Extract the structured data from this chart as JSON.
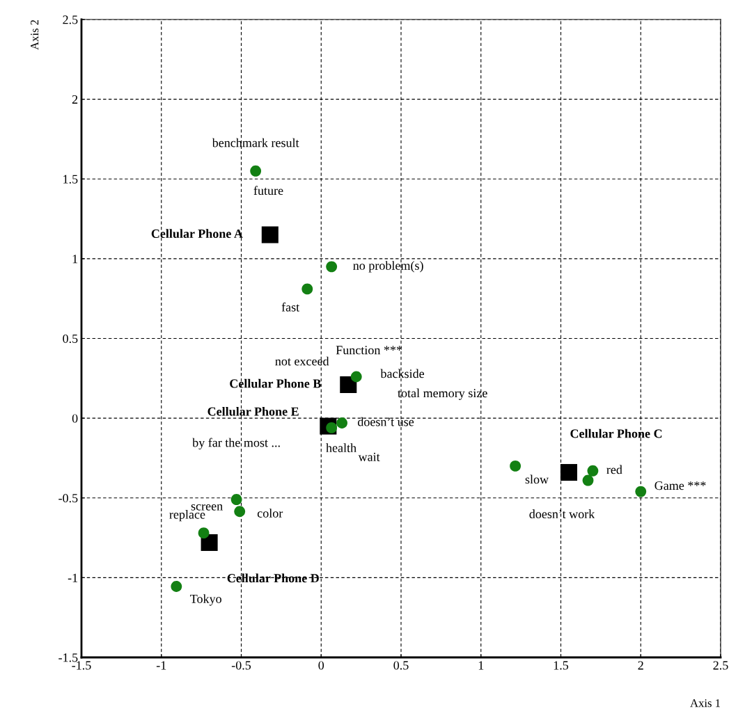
{
  "chart_data": {
    "type": "scatter",
    "xlabel": "Axis 1",
    "ylabel": "Axis 2",
    "xlim": [
      -1.5,
      2.5
    ],
    "ylim": [
      -1.5,
      2.5
    ],
    "xticks": [
      -1.5,
      -1,
      -0.5,
      0,
      0.5,
      1,
      1.5,
      2,
      2.5
    ],
    "yticks": [
      -1.5,
      -1,
      -0.5,
      0,
      0.5,
      1,
      1.5,
      2,
      2.5
    ],
    "grid": true,
    "legend": false,
    "series": [
      {
        "color": "#138013",
        "marker": "circle",
        "x": [
          -0.41,
          0.065,
          -0.087,
          0.22,
          0.13,
          0.065,
          1.215,
          1.7,
          1.67,
          2.0,
          -0.53,
          -0.51,
          -0.735,
          -0.906
        ],
        "values": [
          1.55,
          0.95,
          0.81,
          0.26,
          -0.03,
          -0.06,
          -0.3,
          -0.33,
          -0.39,
          -0.46,
          -0.51,
          -0.585,
          -0.72,
          -1.055
        ],
        "value_labels": [
          "benchmark result",
          "no problem(s)",
          "fast",
          "backside",
          "doesn’t use",
          "health",
          "slow",
          "red",
          "doesn’t work",
          "Game ***",
          "screen",
          "color",
          "replace",
          "Tokyo"
        ]
      },
      {
        "color": "#000000",
        "marker": "square",
        "x": [
          -0.32,
          0.17,
          0.044,
          1.55,
          -0.7
        ],
        "values": [
          1.15,
          0.21,
          -0.05,
          -0.34,
          -0.78
        ],
        "value_labels": [
          "Cellular Phone A",
          "Cellular Phone B",
          "Cellular Phone E",
          "Cellular Phone C",
          "Cellular Phone D"
        ]
      }
    ],
    "annotations": [
      "future",
      "Function ***",
      "not exceed",
      "total memory size",
      "wait",
      "by far the most ..."
    ]
  }
}
